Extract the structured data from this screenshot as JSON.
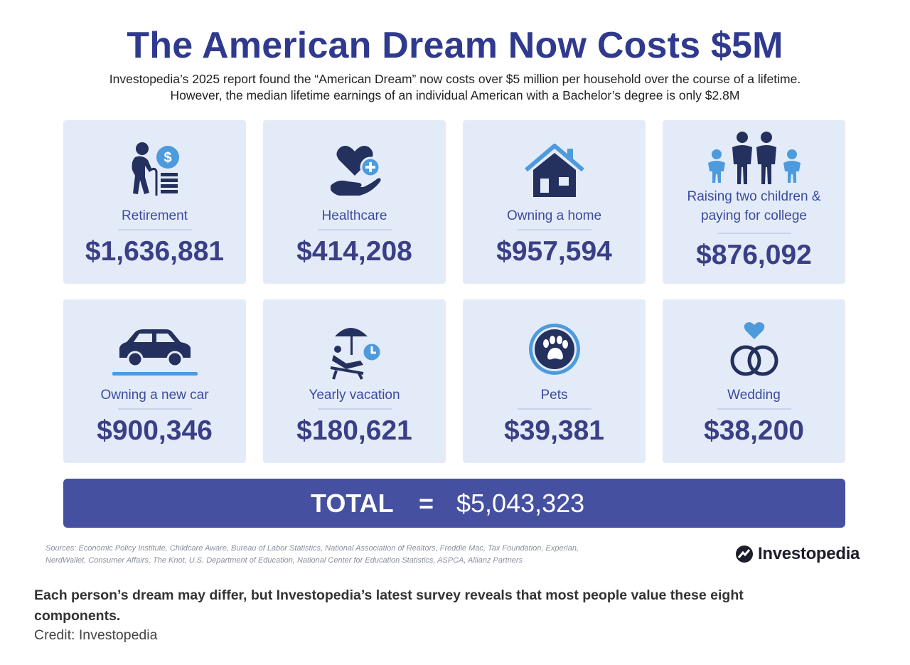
{
  "header": {
    "title": "The American Dream Now Costs $5M",
    "subtitle_line1": "Investopedia’s 2025 report found the “American Dream” now costs over $5 million per household over the course of a lifetime.",
    "subtitle_line2": "However, the median lifetime earnings of an individual American with a Bachelor’s degree is only $2.8M"
  },
  "cards": [
    {
      "label": "Retirement",
      "value": "$1,636,881",
      "icon": "retirement-icon"
    },
    {
      "label": "Healthcare",
      "value": "$414,208",
      "icon": "healthcare-icon"
    },
    {
      "label": "Owning a home",
      "value": "$957,594",
      "icon": "house-icon"
    },
    {
      "label_line1": "Raising two children &",
      "label_line2": "paying for college",
      "value": "$876,092",
      "icon": "family-icon"
    },
    {
      "label": "Owning a new car",
      "value": "$900,346",
      "icon": "car-icon"
    },
    {
      "label": "Yearly vacation",
      "value": "$180,621",
      "icon": "vacation-icon"
    },
    {
      "label": "Pets",
      "value": "$39,381",
      "icon": "paw-icon"
    },
    {
      "label": "Wedding",
      "value": "$38,200",
      "icon": "wedding-rings-icon"
    }
  ],
  "total": {
    "label": "TOTAL",
    "equals": "=",
    "value": "$5,043,323"
  },
  "sources": {
    "line1": "Sources: Economic Policy Institute, Childcare Aware, Bureau of Labor Statistics, National Association of Realtors, Freddie Mac, Tax Foundation, Experian,",
    "line2": "NerdWallet, Consumer Affairs, The Knot, U.S. Department of Education, National Center for Education Statistics, ASPCA, Allianz Partners"
  },
  "logo": {
    "text": "Investopedia",
    "icon": "investopedia-logo-icon"
  },
  "caption": "Each person’s dream may differ, but Investopedia’s latest survey reveals that most people value these eight components.",
  "credit": "Credit: Investopedia",
  "colors": {
    "navy": "#2f3a8f",
    "card_bg": "#e4ebf8",
    "total_bar": "#4650a1",
    "accent_blue": "#4d9bdc",
    "icon_dark": "#24305e"
  }
}
